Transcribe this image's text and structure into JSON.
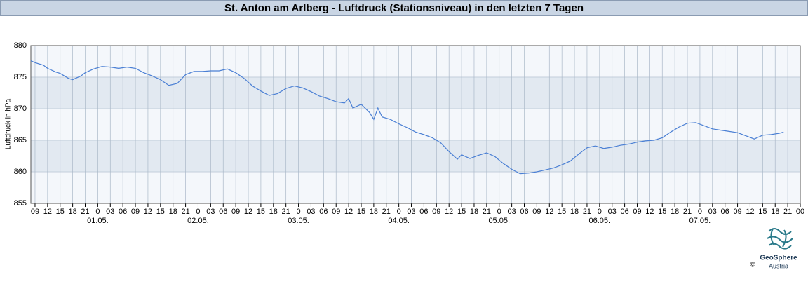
{
  "chart_data": {
    "type": "line",
    "title": "St. Anton am Arlberg - Luftdruck (Stationsniveau) in den letzten 7 Tagen",
    "y_label": "Luftdruck in hPa",
    "color": "#4a7fd4",
    "x": [
      -1,
      0,
      2,
      3,
      5,
      6,
      8,
      9,
      11,
      12,
      14,
      16,
      18,
      20,
      22,
      24,
      26,
      28,
      30,
      32,
      34,
      36,
      38,
      40,
      42,
      44,
      46,
      48,
      50,
      52,
      54,
      56,
      58,
      60,
      62,
      64,
      66,
      68,
      70,
      72,
      74,
      75,
      76,
      78,
      80,
      81,
      82,
      83,
      85,
      87,
      89,
      91,
      93,
      95,
      97,
      99,
      101,
      102,
      104,
      106,
      108,
      110,
      112,
      114,
      116,
      118,
      120,
      122,
      124,
      126,
      128,
      130,
      132,
      134,
      136,
      138,
      140,
      142,
      144,
      146,
      148,
      150,
      152,
      154,
      156,
      158,
      160,
      162,
      164,
      166,
      168,
      170,
      172,
      174,
      176,
      178,
      179
    ],
    "values": [
      877.6,
      877.3,
      876.9,
      876.4,
      875.8,
      875.6,
      874.8,
      874.6,
      875.2,
      875.7,
      876.3,
      876.7,
      876.6,
      876.4,
      876.6,
      876.4,
      875.7,
      875.2,
      874.6,
      873.7,
      874.0,
      875.4,
      875.9,
      875.9,
      876.0,
      876.0,
      876.3,
      875.7,
      874.8,
      873.6,
      872.8,
      872.1,
      872.4,
      873.2,
      873.6,
      873.3,
      872.7,
      872.0,
      871.6,
      871.1,
      870.9,
      871.6,
      870.1,
      870.7,
      869.4,
      868.3,
      870.1,
      868.7,
      868.3,
      867.6,
      867.0,
      866.3,
      865.9,
      865.4,
      864.6,
      863.2,
      862.0,
      862.7,
      862.1,
      862.6,
      863.0,
      862.4,
      861.3,
      860.4,
      859.7,
      859.8,
      860.0,
      860.3,
      860.6,
      861.1,
      861.7,
      862.8,
      863.8,
      864.1,
      863.7,
      863.9,
      864.2,
      864.4,
      864.7,
      864.9,
      865.0,
      865.4,
      866.3,
      867.1,
      867.7,
      867.8,
      867.3,
      866.8,
      866.6,
      866.4,
      866.2,
      865.7,
      865.2,
      865.8,
      865.9,
      866.1,
      866.3
    ],
    "xlim": [
      -1,
      183
    ],
    "ylim": [
      855,
      880
    ],
    "yticks": [
      855,
      860,
      865,
      870,
      875,
      880
    ],
    "xticks": [
      {
        "value": 0,
        "label": "09"
      },
      {
        "value": 3,
        "label": "12"
      },
      {
        "value": 6,
        "label": "15"
      },
      {
        "value": 9,
        "label": "18"
      },
      {
        "value": 12,
        "label": "21"
      },
      {
        "value": 15,
        "label": "0"
      },
      {
        "value": 18,
        "label": "03"
      },
      {
        "value": 21,
        "label": "06"
      },
      {
        "value": 24,
        "label": "09"
      },
      {
        "value": 27,
        "label": "12"
      },
      {
        "value": 30,
        "label": "15"
      },
      {
        "value": 33,
        "label": "18"
      },
      {
        "value": 36,
        "label": "21"
      },
      {
        "value": 39,
        "label": "0"
      },
      {
        "value": 42,
        "label": "03"
      },
      {
        "value": 45,
        "label": "06"
      },
      {
        "value": 48,
        "label": "09"
      },
      {
        "value": 51,
        "label": "12"
      },
      {
        "value": 54,
        "label": "15"
      },
      {
        "value": 57,
        "label": "18"
      },
      {
        "value": 60,
        "label": "21"
      },
      {
        "value": 63,
        "label": "0"
      },
      {
        "value": 66,
        "label": "03"
      },
      {
        "value": 69,
        "label": "06"
      },
      {
        "value": 72,
        "label": "09"
      },
      {
        "value": 75,
        "label": "12"
      },
      {
        "value": 78,
        "label": "15"
      },
      {
        "value": 81,
        "label": "18"
      },
      {
        "value": 84,
        "label": "21"
      },
      {
        "value": 87,
        "label": "0"
      },
      {
        "value": 90,
        "label": "03"
      },
      {
        "value": 93,
        "label": "06"
      },
      {
        "value": 96,
        "label": "09"
      },
      {
        "value": 99,
        "label": "12"
      },
      {
        "value": 102,
        "label": "15"
      },
      {
        "value": 105,
        "label": "18"
      },
      {
        "value": 108,
        "label": "21"
      },
      {
        "value": 111,
        "label": "0"
      },
      {
        "value": 114,
        "label": "03"
      },
      {
        "value": 117,
        "label": "06"
      },
      {
        "value": 120,
        "label": "09"
      },
      {
        "value": 123,
        "label": "12"
      },
      {
        "value": 126,
        "label": "15"
      },
      {
        "value": 129,
        "label": "18"
      },
      {
        "value": 132,
        "label": "21"
      },
      {
        "value": 135,
        "label": "0"
      },
      {
        "value": 138,
        "label": "03"
      },
      {
        "value": 141,
        "label": "06"
      },
      {
        "value": 144,
        "label": "09"
      },
      {
        "value": 147,
        "label": "12"
      },
      {
        "value": 150,
        "label": "15"
      },
      {
        "value": 153,
        "label": "18"
      },
      {
        "value": 156,
        "label": "21"
      },
      {
        "value": 159,
        "label": "0"
      },
      {
        "value": 162,
        "label": "03"
      },
      {
        "value": 165,
        "label": "06"
      },
      {
        "value": 168,
        "label": "09"
      },
      {
        "value": 171,
        "label": "12"
      },
      {
        "value": 174,
        "label": "15"
      },
      {
        "value": 177,
        "label": "18"
      },
      {
        "value": 180,
        "label": "21"
      },
      {
        "value": 183,
        "label": "00"
      }
    ],
    "day_ticks": [
      {
        "value": 15,
        "label": "01.05."
      },
      {
        "value": 39,
        "label": "02.05."
      },
      {
        "value": 63,
        "label": "03.05."
      },
      {
        "value": 87,
        "label": "04.05."
      },
      {
        "value": 111,
        "label": "05.05."
      },
      {
        "value": 135,
        "label": "06.05."
      },
      {
        "value": 159,
        "label": "07.05."
      }
    ],
    "grid": true
  },
  "logo": {
    "name": "GeoSphere",
    "sub": "Austria",
    "copyright": "©"
  }
}
